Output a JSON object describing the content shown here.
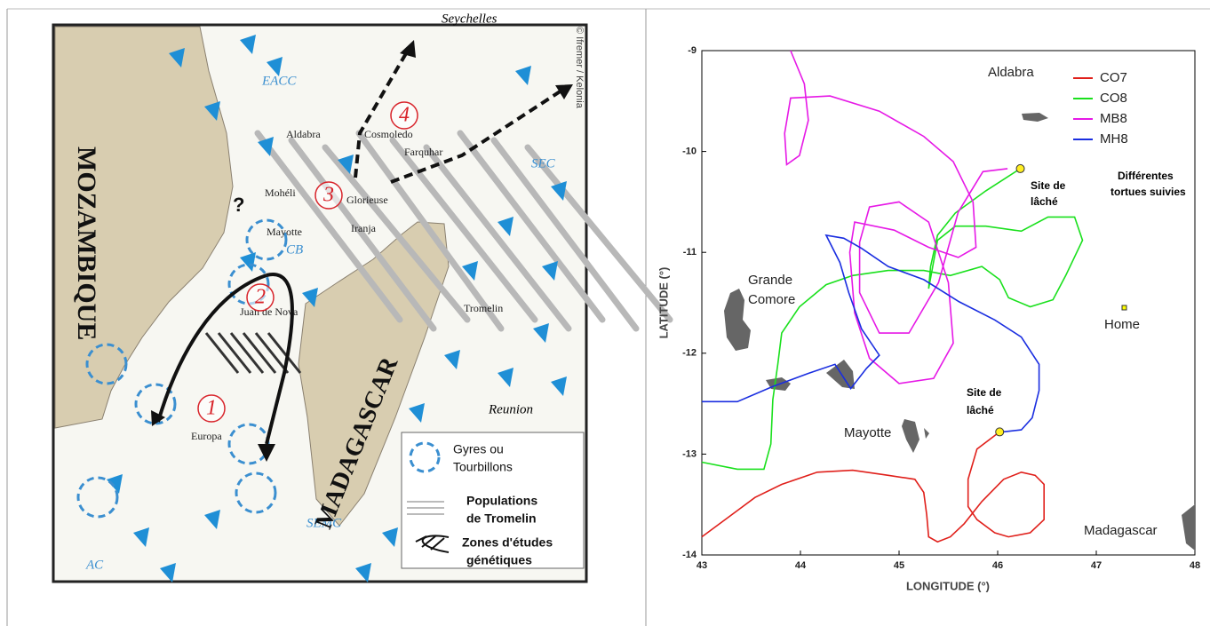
{
  "map": {
    "labels": {
      "seychelles": "Seychelles",
      "credit": "© Ifremer / Kelonia",
      "eacc": "EACC",
      "aldabra": "Aldabra",
      "cosmoledo": "Cosmoledo",
      "farquhar": "Farquhar",
      "moheli": "Mohéli",
      "glorieuse": "Glorieuse",
      "mayotte": "Mayotte",
      "iranja": "Iranja",
      "cb": "CB",
      "sec": "SEC",
      "question": "?",
      "tromelin": "Tromelin",
      "reunion": "Reunion",
      "europa": "Europa",
      "juan_de_nova": "Juan de Nova",
      "semc": "SEMC",
      "ac": "AC",
      "mozambique": "MOZAMBIQUE",
      "madagascar": "MADAGASCAR"
    },
    "zones": [
      "1",
      "2",
      "3",
      "4"
    ],
    "legend": [
      [
        "Gyres ou",
        "Tourbillons"
      ],
      [
        "Populations",
        "de Tromelin"
      ],
      [
        "Zones d'études",
        "génétiques"
      ]
    ]
  },
  "chart_data": {
    "type": "line",
    "x_label": "LONGITUDE (°)",
    "y_label": "LATITUDE (°)",
    "xlim": [
      43,
      48
    ],
    "ylim": [
      -14,
      -9
    ],
    "xticks": [
      43,
      44,
      45,
      46,
      47,
      48
    ],
    "yticks": [
      -14,
      -13,
      -12,
      -11,
      -10,
      -9
    ],
    "legend": "upper right",
    "annotations": [
      [
        "Aldabra"
      ],
      [
        "Grande",
        "Comore"
      ],
      [
        "Mayotte"
      ],
      [
        "Madagascar"
      ],
      [
        "Home"
      ],
      [
        "Site de",
        "lâché"
      ],
      [
        "Site de",
        "lâché"
      ],
      [
        "Différentes",
        "tortues suivies"
      ]
    ],
    "series": [
      {
        "name": "CO7",
        "color": "#e0201b",
        "x": [
          46.02,
          45.79,
          45.7,
          45.7,
          45.79,
          45.97,
          46.11,
          46.33,
          46.47,
          46.47,
          46.38,
          46.24,
          46.06,
          45.84,
          45.66,
          45.52,
          45.39,
          45.3,
          45.28,
          45.25,
          45.16,
          44.89,
          44.53,
          44.17,
          43.81,
          43.54,
          43.36,
          43.0
        ],
        "values": [
          -12.78,
          -12.95,
          -13.25,
          -13.52,
          -13.65,
          -13.78,
          -13.82,
          -13.78,
          -13.65,
          -13.3,
          -13.21,
          -13.18,
          -13.25,
          -13.47,
          -13.69,
          -13.82,
          -13.87,
          -13.82,
          -13.6,
          -13.38,
          -13.25,
          -13.21,
          -13.16,
          -13.18,
          -13.3,
          -13.43,
          -13.56,
          -13.82
        ]
      },
      {
        "name": "CO8",
        "color": "#19e01c",
        "x": [
          46.23,
          45.88,
          45.57,
          45.39,
          45.32,
          45.3,
          45.39,
          45.57,
          45.88,
          46.24,
          46.51,
          46.78,
          46.86,
          46.69,
          46.56,
          46.33,
          46.11,
          46.02,
          45.84,
          45.52,
          45.25,
          44.89,
          44.53,
          44.26,
          43.99,
          43.81,
          43.77,
          43.72,
          43.7,
          43.63,
          43.36,
          43.0
        ],
        "values": [
          -10.17,
          -10.39,
          -10.61,
          -10.83,
          -11.14,
          -11.36,
          -10.88,
          -10.74,
          -10.74,
          -10.79,
          -10.65,
          -10.65,
          -10.88,
          -11.23,
          -11.47,
          -11.54,
          -11.45,
          -11.27,
          -11.14,
          -11.23,
          -11.18,
          -11.18,
          -11.23,
          -11.32,
          -11.54,
          -11.8,
          -12.11,
          -12.46,
          -12.9,
          -13.15,
          -13.15,
          -13.08
        ]
      },
      {
        "name": "MB8",
        "color": "#e619e6",
        "x": [
          43.9,
          44.04,
          44.08,
          43.99,
          43.86,
          43.84,
          43.9,
          44.3,
          44.8,
          45.25,
          45.55,
          45.75,
          45.78,
          45.6,
          45.3,
          44.95,
          44.55,
          44.5,
          44.55,
          44.7,
          45.0,
          45.35,
          45.55,
          45.5,
          45.3,
          45.0,
          44.7,
          44.6,
          44.6,
          44.8,
          45.1,
          45.4,
          45.6,
          45.85,
          46.1
        ],
        "values": [
          -9.0,
          -9.33,
          -9.69,
          -10.04,
          -10.13,
          -9.82,
          -9.47,
          -9.45,
          -9.6,
          -9.85,
          -10.1,
          -10.5,
          -10.95,
          -11.05,
          -10.95,
          -10.78,
          -10.7,
          -11.0,
          -11.6,
          -12.05,
          -12.3,
          -12.25,
          -11.9,
          -11.3,
          -10.7,
          -10.5,
          -10.55,
          -10.9,
          -11.4,
          -11.8,
          -11.8,
          -11.3,
          -10.6,
          -10.2,
          -10.17
        ]
      },
      {
        "name": "MH8",
        "color": "#1a2ee0",
        "x": [
          43.0,
          43.36,
          43.72,
          44.08,
          44.35,
          44.51,
          44.67,
          44.8,
          44.62,
          44.49,
          44.4,
          44.26,
          44.44,
          44.62,
          44.89,
          45.25,
          45.61,
          45.97,
          46.24,
          46.42,
          46.42,
          46.35,
          46.24,
          46.05
        ],
        "values": [
          -12.48,
          -12.48,
          -12.33,
          -12.2,
          -12.11,
          -12.35,
          -12.15,
          -12.02,
          -11.76,
          -11.4,
          -11.1,
          -10.83,
          -10.86,
          -10.96,
          -11.14,
          -11.27,
          -11.49,
          -11.67,
          -11.84,
          -12.11,
          -12.37,
          -12.64,
          -12.76,
          -12.78
        ]
      }
    ]
  }
}
